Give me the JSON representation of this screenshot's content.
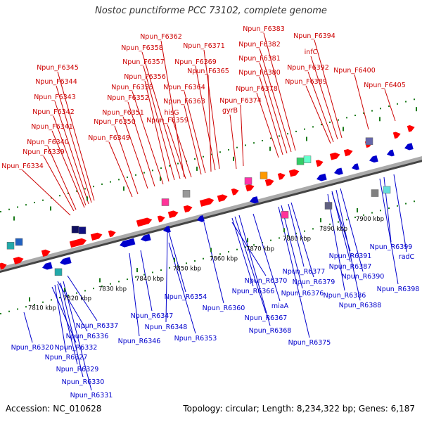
{
  "title": "Nostoc punctiforme PCC 73102, complete genome",
  "footer": {
    "accession": "Accession: NC_010628",
    "summary": "Topology: circular; Length: 8,234,322 bp; Genes: 6,187"
  },
  "colors": {
    "forward": "#ff0000",
    "reverse": "#0000cc",
    "backbone": "#888888",
    "tick": "#1a7a1a"
  },
  "ruler": {
    "unit": "kbp",
    "ticks": [
      "7810 kbp",
      "7820 kbp",
      "7830 kbp",
      "7840 kbp",
      "7850 kbp",
      "7860 kbp",
      "7870 kbp",
      "7880 kbp",
      "7890 kbp",
      "7900 kbp"
    ]
  },
  "forward_genes": [
    "Npun_F6334",
    "Npun_F6339",
    "Npun_F6340",
    "Npun_F6341",
    "Npun_F6342",
    "Npun_F6343",
    "Npun_F6344",
    "Npun_F6345",
    "Npun_F6349",
    "Npun_F6350",
    "Npun_F6351",
    "Npun_F6352",
    "Npun_F6355",
    "Npun_F6356",
    "Npun_F6357",
    "Npun_F6358",
    "Npun_F6362",
    "hisG",
    "Npun_F6359",
    "Npun_F6363",
    "Npun_F6364",
    "Npun_F6365",
    "Npun_F6369",
    "Npun_F6371",
    "gyrB",
    "Npun_F6374",
    "Npun_F6378",
    "Npun_F6380",
    "Npun_F6381",
    "Npun_F6382",
    "Npun_F6383",
    "Npun_F6389",
    "Npun_F6392",
    "infC",
    "Npun_F6394",
    "Npun_F6400",
    "Npun_F6405"
  ],
  "reverse_genes": [
    "Npun_R6320",
    "Npun_R6327",
    "Npun_R6329",
    "Npun_R6330",
    "Npun_R6331",
    "Npun_R6332",
    "Npun_R6336",
    "Npun_R6337",
    "Npun_R6346",
    "Npun_R6347",
    "Npun_R6348",
    "Npun_R6353",
    "Npun_R6354",
    "Npun_R6360",
    "Npun_R6366",
    "Npun_R6367",
    "Npun_R6368",
    "Npun_R6370",
    "miaA",
    "Npun_R6375",
    "Npun_R6376",
    "Npun_R6377",
    "Npun_R6379",
    "Npun_R6386",
    "Npun_R6387",
    "Npun_R6388",
    "Npun_R6390",
    "Npun_R6391",
    "Npun_R6398",
    "Npun_R6399",
    "radC"
  ]
}
